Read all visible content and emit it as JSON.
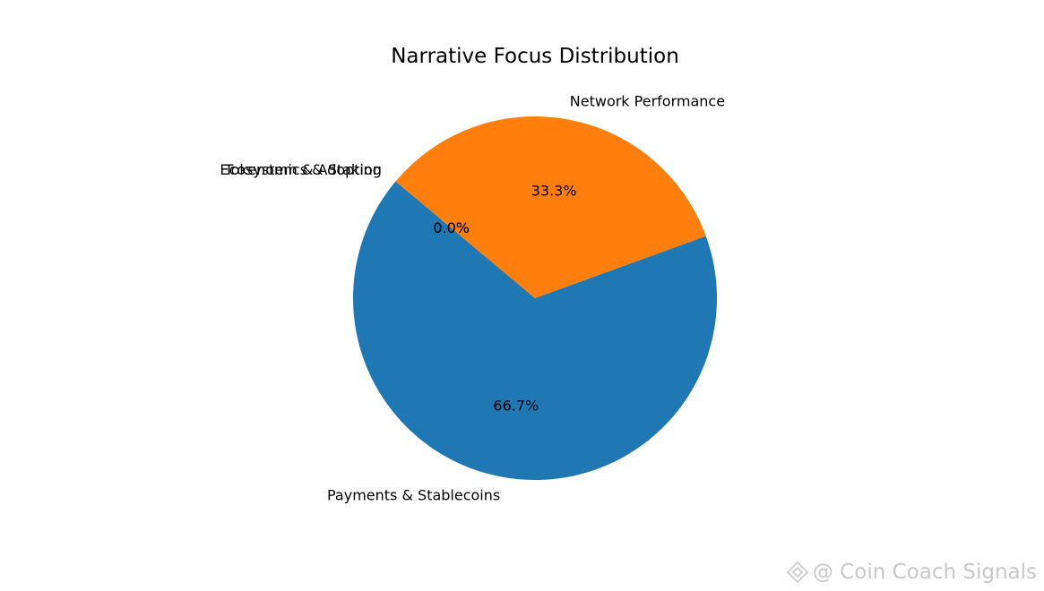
{
  "chart_data": {
    "type": "pie",
    "title": "Narrative Focus Distribution",
    "start_angle_deg": 140,
    "direction": "counterclockwise",
    "slices": [
      {
        "label": "Payments & Stablecoins",
        "value": 2,
        "pct_label": "66.7%",
        "color": "#1f77b4"
      },
      {
        "label": "Network Performance",
        "value": 1,
        "pct_label": "33.3%",
        "color": "#ff7f0e"
      },
      {
        "label": "Ecosystem & Adoption",
        "value": 0,
        "pct_label": "0.0%",
        "color": "#2ca02c"
      },
      {
        "label": "Tokenomics & Staking",
        "value": 0,
        "pct_label": "0.0%",
        "color": "#d62728"
      }
    ]
  },
  "watermark": {
    "text": "@ Coin Coach Signals",
    "icon": "binance-diamond-icon"
  }
}
